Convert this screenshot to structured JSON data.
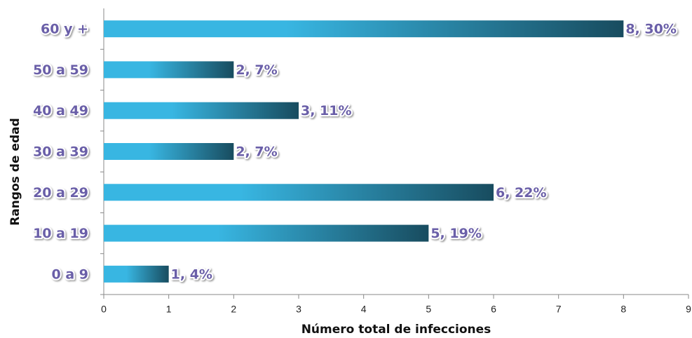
{
  "chart_data": {
    "type": "hbar",
    "categories": [
      "0 a 9",
      "10 a 19",
      "20 a 29",
      "30 a 39",
      "40 a 49",
      "50 a 59",
      "60 y +"
    ],
    "values": [
      1,
      5,
      6,
      2,
      3,
      2,
      8
    ],
    "value_labels": [
      "1, 4%",
      "5, 19%",
      "6, 22%",
      "2, 7%",
      "3, 11%",
      "2, 7%",
      "8, 30%"
    ],
    "color": "#38b6e2",
    "xlim": [
      0,
      9
    ],
    "xticks": [
      0,
      1,
      2,
      3,
      4,
      5,
      6,
      7,
      8,
      9
    ],
    "xlabel": "Número total de infecciones",
    "ylabel": "Rangos de edad",
    "grid": false
  }
}
